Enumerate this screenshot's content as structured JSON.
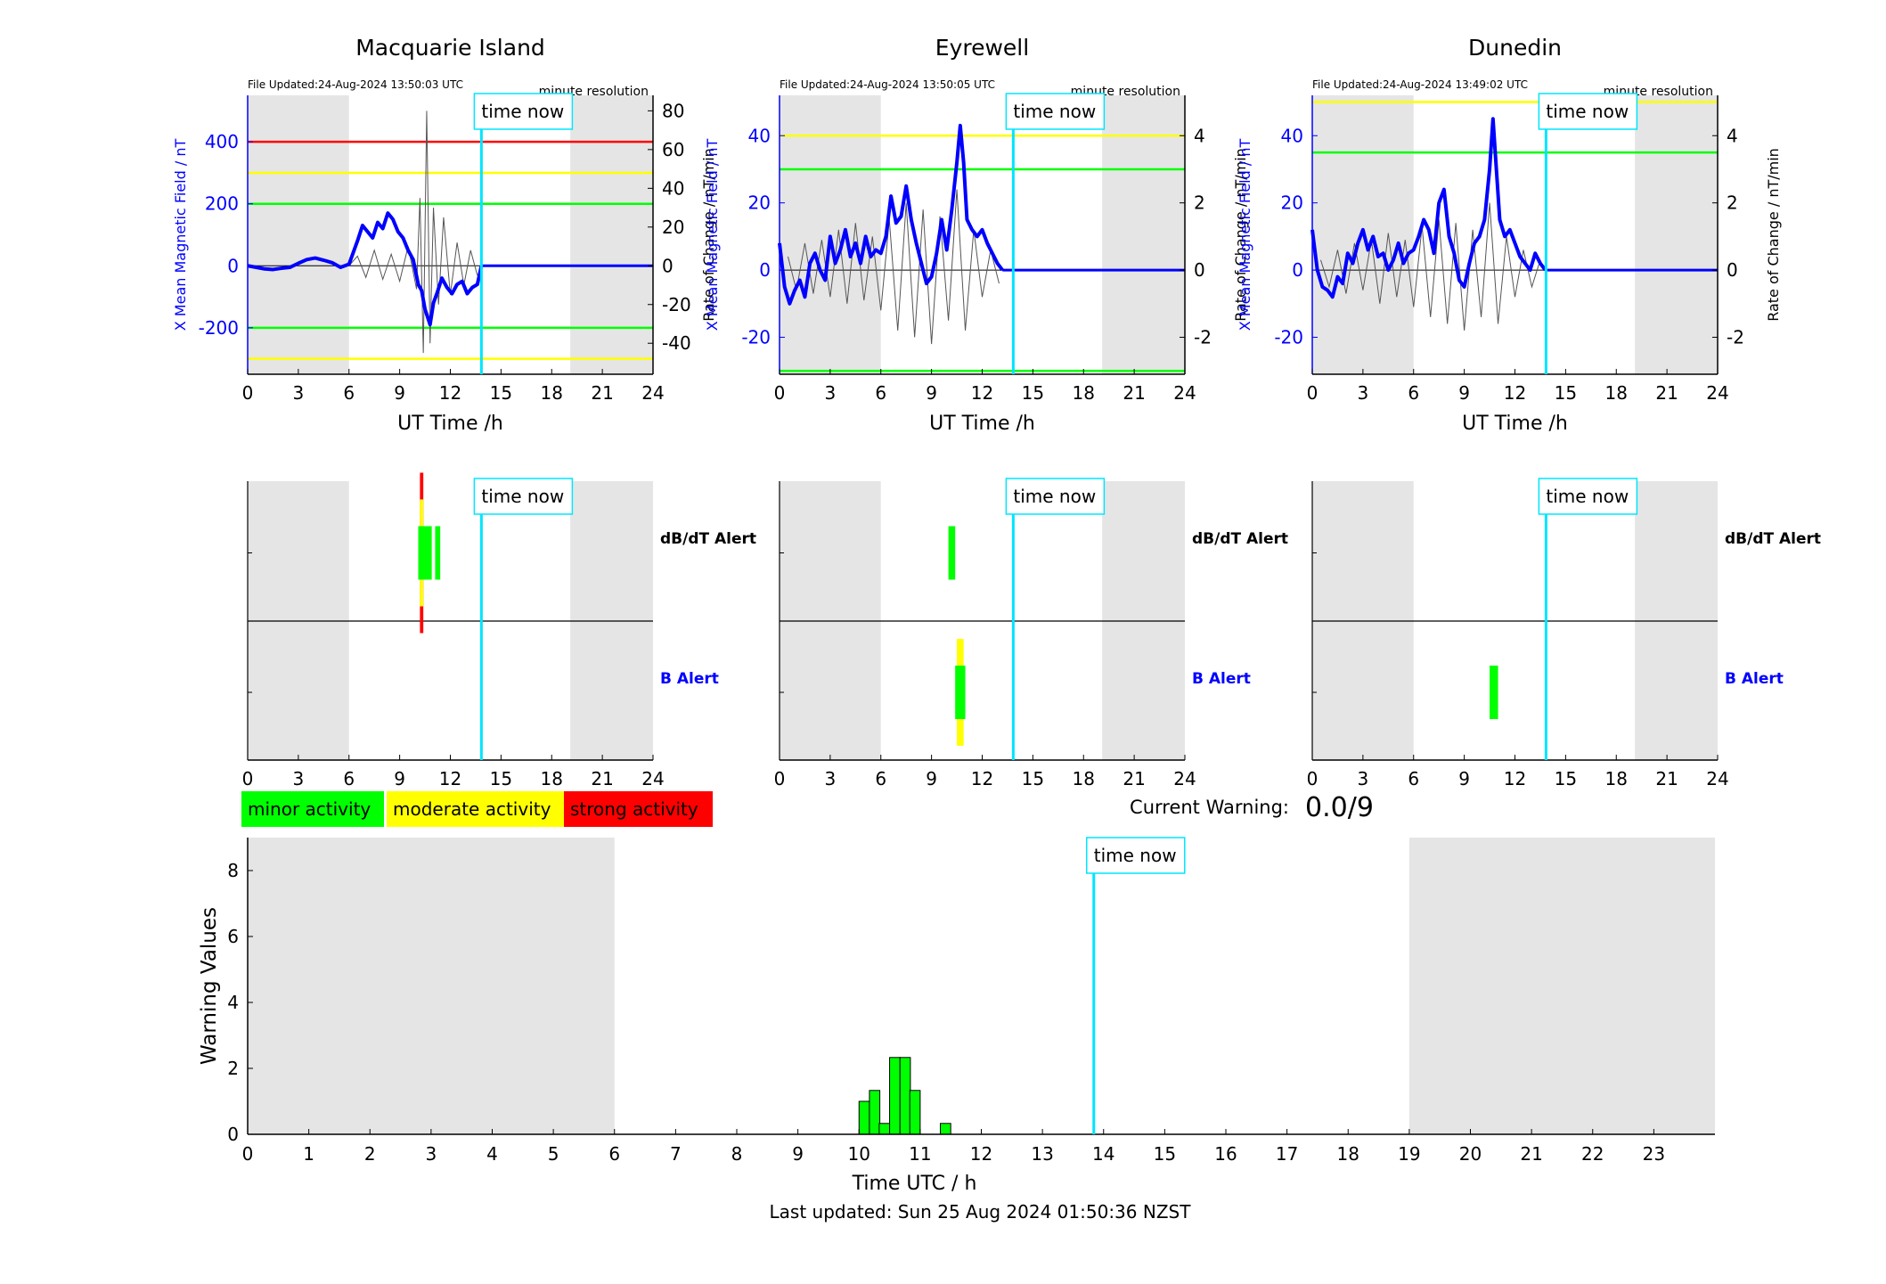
{
  "colors": {
    "mean_field": "#0000ff",
    "rate_of_change": "#555555",
    "time_now": "#00e5ff",
    "shade": "#e5e5e5",
    "minor": "#00ff00",
    "moderate": "#ffff00",
    "strong": "#ff0000",
    "text": "#000000"
  },
  "common": {
    "time_now_label": "time now",
    "time_now_hour": 13.84,
    "resolution_label": "minute resolution",
    "xlabel": "UT Time /h",
    "ylabel_left": "X Mean Magnetic Field / nT",
    "ylabel_right": "Rate of Change / nT/min",
    "dbdt_label": "dB/dT Alert",
    "b_label": "B Alert"
  },
  "legend": {
    "minor": "minor activity",
    "moderate": "moderate activity",
    "strong": "strong activity"
  },
  "current_warning": {
    "label": "Current Warning:",
    "value": "0.0/9"
  },
  "footer": {
    "last_updated": "Last updated: Sun 25 Aug 2024 01:50:36 NZST"
  },
  "chart_data": [
    {
      "type": "line",
      "station": "Macquarie Island",
      "file_updated": "File Updated:24-Aug-2024 13:50:03 UTC",
      "xlim": [
        0,
        24
      ],
      "xticks": [
        0,
        3,
        6,
        9,
        12,
        15,
        18,
        21,
        24
      ],
      "ylim_left": [
        -350,
        550
      ],
      "yticks_left": [
        -200,
        0,
        200,
        400
      ],
      "ylim_right": [
        -56,
        88
      ],
      "yticks_right": [
        -40,
        -20,
        0,
        20,
        40,
        60,
        80
      ],
      "night_shading": [
        [
          0,
          6
        ],
        [
          19.1,
          24
        ]
      ],
      "thresholds": [
        {
          "level": "strong",
          "value": 400
        },
        {
          "level": "moderate",
          "value": 300
        },
        {
          "level": "minor",
          "value": 200
        },
        {
          "level": "minor",
          "value": -200
        },
        {
          "level": "moderate",
          "value": -300
        }
      ],
      "mean_field_x": [
        0,
        0.5,
        1,
        1.5,
        2,
        2.5,
        3,
        3.5,
        4,
        4.5,
        5,
        5.5,
        6,
        6.5,
        6.8,
        7.1,
        7.4,
        7.7,
        8,
        8.3,
        8.6,
        8.9,
        9.2,
        9.5,
        9.8,
        10.1,
        10.3,
        10.5,
        10.8,
        11,
        11.2,
        11.5,
        11.8,
        12.1,
        12.4,
        12.7,
        13,
        13.3,
        13.6,
        13.84
      ],
      "mean_field_y": [
        0,
        -5,
        -10,
        -12,
        -8,
        -5,
        8,
        20,
        25,
        18,
        10,
        -5,
        5,
        80,
        130,
        110,
        90,
        140,
        120,
        170,
        150,
        110,
        90,
        50,
        20,
        -60,
        -80,
        -140,
        -190,
        -120,
        -90,
        -40,
        -70,
        -90,
        -60,
        -50,
        -90,
        -70,
        -60,
        0
      ],
      "future_y": 0,
      "rate_x": [
        6.0,
        6.5,
        7.0,
        7.5,
        8.0,
        8.5,
        9.0,
        9.5,
        10.0,
        10.2,
        10.4,
        10.6,
        10.8,
        11.0,
        11.3,
        11.6,
        12.0,
        12.4,
        12.8,
        13.2,
        13.6
      ],
      "rate_y": [
        0,
        5,
        -6,
        8,
        -7,
        6,
        -8,
        10,
        -12,
        35,
        -45,
        80,
        -40,
        30,
        -20,
        25,
        -15,
        12,
        -10,
        8,
        -5
      ],
      "alerts_dbdt": [
        {
          "start": 10.2,
          "end": 10.4,
          "level": "strong",
          "height": 3
        },
        {
          "start": 10.2,
          "end": 10.4,
          "level": "moderate",
          "height": 2
        },
        {
          "start": 10.1,
          "end": 10.9,
          "level": "minor",
          "height": 1
        },
        {
          "start": 11.1,
          "end": 11.4,
          "level": "minor",
          "height": 1
        }
      ],
      "alerts_b": []
    },
    {
      "type": "line",
      "station": "Eyrewell",
      "file_updated": "File Updated:24-Aug-2024 13:50:05 UTC",
      "xlim": [
        0,
        24
      ],
      "xticks": [
        0,
        3,
        6,
        9,
        12,
        15,
        18,
        21,
        24
      ],
      "ylim_left": [
        -31,
        52
      ],
      "yticks_left": [
        -20,
        0,
        20,
        40
      ],
      "ylim_right": [
        -3.1,
        5.2
      ],
      "yticks_right": [
        -2,
        0,
        2,
        4
      ],
      "night_shading": [
        [
          0,
          6
        ],
        [
          19.1,
          24
        ]
      ],
      "thresholds": [
        {
          "level": "moderate",
          "value": 40
        },
        {
          "level": "minor",
          "value": 30
        },
        {
          "level": "minor",
          "value": -30
        }
      ],
      "mean_field_x": [
        0,
        0.3,
        0.6,
        0.9,
        1.2,
        1.5,
        1.8,
        2.1,
        2.4,
        2.7,
        3.0,
        3.3,
        3.6,
        3.9,
        4.2,
        4.5,
        4.8,
        5.1,
        5.4,
        5.7,
        6.0,
        6.3,
        6.6,
        6.9,
        7.2,
        7.5,
        7.8,
        8.1,
        8.4,
        8.7,
        9.0,
        9.3,
        9.6,
        9.9,
        10.2,
        10.5,
        10.7,
        10.9,
        11.1,
        11.4,
        11.7,
        12.0,
        12.3,
        12.6,
        12.9,
        13.2
      ],
      "mean_field_y": [
        8,
        -5,
        -10,
        -6,
        -3,
        -8,
        2,
        5,
        0,
        -3,
        10,
        2,
        6,
        12,
        4,
        8,
        2,
        10,
        4,
        6,
        5,
        10,
        22,
        14,
        16,
        25,
        15,
        8,
        2,
        -4,
        -2,
        5,
        15,
        6,
        18,
        32,
        43,
        32,
        15,
        12,
        10,
        12,
        8,
        5,
        2,
        0
      ],
      "future_y": 0,
      "rate_x": [
        0.5,
        1.0,
        1.5,
        2.0,
        2.5,
        3.0,
        3.5,
        4.0,
        4.5,
        5.0,
        5.5,
        6.0,
        6.5,
        7.0,
        7.5,
        8.0,
        8.5,
        9.0,
        9.5,
        10.0,
        10.5,
        11.0,
        11.5,
        12.0,
        12.5,
        13.0
      ],
      "rate_y": [
        0.4,
        -0.6,
        0.8,
        -0.7,
        0.9,
        -0.8,
        1.2,
        -1.0,
        1.4,
        -0.9,
        1.0,
        -1.2,
        1.5,
        -1.8,
        2.0,
        -2.0,
        1.8,
        -2.2,
        1.6,
        -1.5,
        2.4,
        -1.8,
        1.2,
        -0.8,
        0.6,
        -0.4
      ],
      "alerts_dbdt": [
        {
          "start": 10.0,
          "end": 10.4,
          "level": "minor",
          "height": 1
        }
      ],
      "alerts_b": [
        {
          "start": 10.5,
          "end": 10.9,
          "level": "moderate",
          "height": 2
        },
        {
          "start": 10.4,
          "end": 11.0,
          "level": "minor",
          "height": 1
        }
      ]
    },
    {
      "type": "line",
      "station": "Dunedin",
      "file_updated": "File Updated:24-Aug-2024 13:49:02 UTC",
      "xlim": [
        0,
        24
      ],
      "xticks": [
        0,
        3,
        6,
        9,
        12,
        15,
        18,
        21,
        24
      ],
      "ylim_left": [
        -31,
        52
      ],
      "yticks_left": [
        -20,
        0,
        20,
        40
      ],
      "ylim_right": [
        -3.1,
        5.2
      ],
      "yticks_right": [
        -2,
        0,
        2,
        4
      ],
      "night_shading": [
        [
          0,
          6
        ],
        [
          19.1,
          24
        ]
      ],
      "thresholds": [
        {
          "level": "moderate",
          "value": 50
        },
        {
          "level": "minor",
          "value": 35
        }
      ],
      "mean_field_x": [
        0,
        0.3,
        0.6,
        0.9,
        1.2,
        1.5,
        1.8,
        2.1,
        2.4,
        2.7,
        3.0,
        3.3,
        3.6,
        3.9,
        4.2,
        4.5,
        4.8,
        5.1,
        5.4,
        5.7,
        6.0,
        6.3,
        6.6,
        6.9,
        7.2,
        7.5,
        7.8,
        8.1,
        8.4,
        8.7,
        9.0,
        9.3,
        9.6,
        9.9,
        10.2,
        10.5,
        10.7,
        10.9,
        11.1,
        11.4,
        11.7,
        12.0,
        12.3,
        12.6,
        12.9,
        13.2,
        13.5,
        13.8
      ],
      "mean_field_y": [
        12,
        0,
        -5,
        -6,
        -8,
        -2,
        -4,
        5,
        2,
        8,
        12,
        6,
        10,
        4,
        5,
        0,
        3,
        8,
        2,
        5,
        6,
        10,
        15,
        12,
        5,
        20,
        24,
        10,
        5,
        -3,
        -5,
        2,
        8,
        10,
        15,
        30,
        45,
        30,
        15,
        10,
        12,
        8,
        4,
        2,
        0,
        5,
        2,
        0
      ],
      "future_y": 0,
      "rate_x": [
        0.5,
        1.0,
        1.5,
        2.0,
        2.5,
        3.0,
        3.5,
        4.0,
        4.5,
        5.0,
        5.5,
        6.0,
        6.5,
        7.0,
        7.5,
        8.0,
        8.5,
        9.0,
        9.5,
        10.0,
        10.5,
        11.0,
        11.5,
        12.0,
        12.5,
        13.0,
        13.5
      ],
      "rate_y": [
        0.3,
        -0.5,
        0.6,
        -0.7,
        0.8,
        -0.6,
        0.9,
        -1.0,
        1.1,
        -0.8,
        0.9,
        -1.1,
        1.3,
        -1.4,
        1.5,
        -1.6,
        1.4,
        -1.8,
        1.2,
        -1.4,
        2.0,
        -1.6,
        1.0,
        -0.8,
        0.6,
        -0.5,
        0.3
      ],
      "alerts_dbdt": [],
      "alerts_b": [
        {
          "start": 10.5,
          "end": 11.0,
          "level": "minor",
          "height": 1
        }
      ]
    },
    {
      "type": "bar",
      "xlabel": "Time UTC / h",
      "ylabel": "Warning Values",
      "xlim": [
        0,
        24
      ],
      "xticks": [
        0,
        1,
        2,
        3,
        4,
        5,
        6,
        7,
        8,
        9,
        10,
        11,
        12,
        13,
        14,
        15,
        16,
        17,
        18,
        19,
        20,
        21,
        22,
        23
      ],
      "ylim": [
        0,
        9
      ],
      "yticks": [
        0,
        2,
        4,
        6,
        8
      ],
      "night_shading": [
        [
          0,
          6
        ],
        [
          19,
          24
        ]
      ],
      "time_now_hour": 13.84,
      "bar_width": 0.17,
      "x": [
        10.0,
        10.17,
        10.33,
        10.5,
        10.67,
        10.83,
        11.33
      ],
      "values": [
        1.0,
        1.33,
        0.33,
        2.33,
        2.33,
        1.33,
        0.33
      ]
    }
  ]
}
